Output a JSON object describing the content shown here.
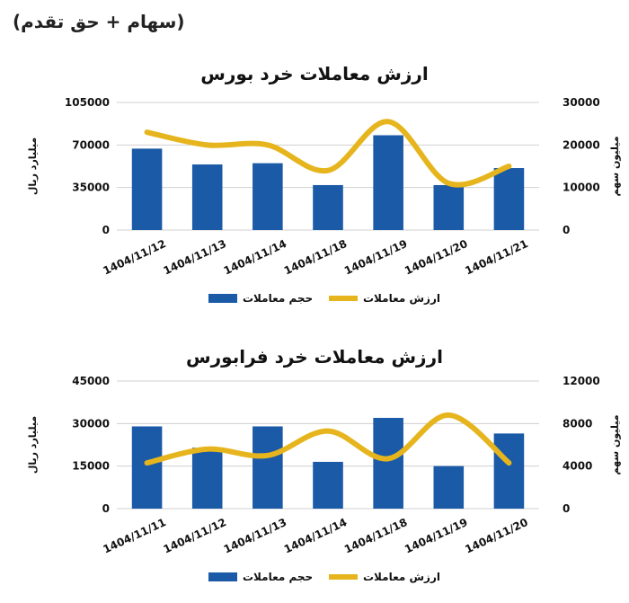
{
  "header": {
    "title": "(سهام + حق تقدم)"
  },
  "chart_data": [
    {
      "type": "bar+line",
      "title": "ارزش معاملات خرد بورس",
      "categories": [
        "1404/11/12",
        "1404/11/13",
        "1404/11/14",
        "1404/11/18",
        "1404/11/19",
        "1404/11/20",
        "1404/11/21"
      ],
      "series": [
        {
          "name": "حجم معاملات",
          "type": "bar",
          "axis": "left",
          "color": "#1a5aa6",
          "values": [
            67000,
            54000,
            55000,
            37000,
            78000,
            37000,
            51000
          ]
        },
        {
          "name": "ارزش معاملات",
          "type": "line",
          "axis": "right",
          "color": "#e6b51e",
          "values": [
            23000,
            20000,
            20000,
            14000,
            25500,
            11000,
            15000
          ]
        }
      ],
      "left_axis": {
        "label": "میلیارد ریال",
        "ticks": [
          "0",
          "35000",
          "70000",
          "105000"
        ],
        "range": [
          0,
          105000
        ]
      },
      "right_axis": {
        "label": "میلیون سهم",
        "ticks": [
          "0",
          "10000",
          "20000",
          "30000"
        ],
        "range": [
          0,
          30000
        ]
      },
      "legend": [
        "حجم معاملات",
        "ارزش معاملات"
      ]
    },
    {
      "type": "bar+line",
      "title": "ارزش معاملات خرد فرابورس",
      "categories": [
        "1404/11/11",
        "1404/11/12",
        "1404/11/13",
        "1404/11/14",
        "1404/11/18",
        "1404/11/19",
        "1404/11/20"
      ],
      "series": [
        {
          "name": "حجم معاملات",
          "type": "bar",
          "axis": "left",
          "color": "#1a5aa6",
          "values": [
            29000,
            21500,
            29000,
            16500,
            32000,
            15000,
            26500
          ]
        },
        {
          "name": "ارزش معاملات",
          "type": "line",
          "axis": "right",
          "color": "#e6b51e",
          "values": [
            4300,
            5600,
            5000,
            7300,
            4700,
            8800,
            4300
          ]
        }
      ],
      "left_axis": {
        "label": "میلیارد ریال",
        "ticks": [
          "0",
          "15000",
          "30000",
          "45000"
        ],
        "range": [
          0,
          45000
        ]
      },
      "right_axis": {
        "label": "میلیون سهم",
        "ticks": [
          "0",
          "4000",
          "8000",
          "12000"
        ],
        "range": [
          0,
          12000
        ]
      },
      "legend": [
        "حجم معاملات",
        "ارزش معاملات"
      ]
    }
  ]
}
